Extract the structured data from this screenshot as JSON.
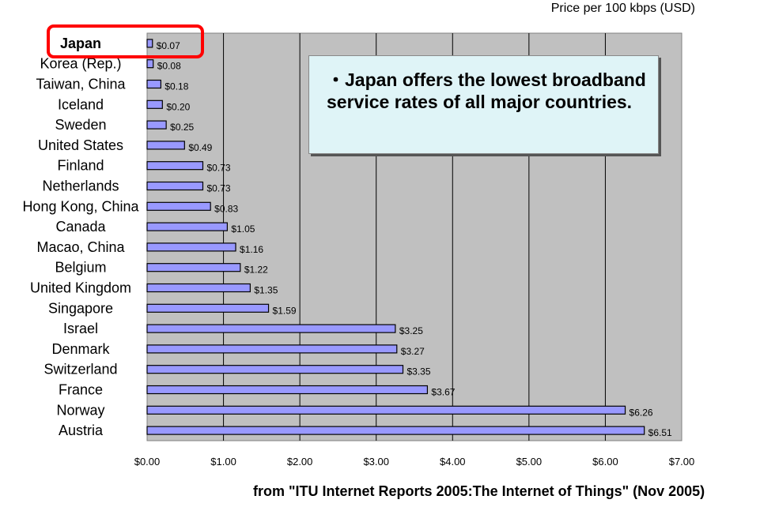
{
  "header": {
    "unit_label": "Price per 100 kbps (USD)"
  },
  "callout": {
    "text": "・Japan offers the lowest broadband service rates of all major countries."
  },
  "footer": {
    "source": "from \"ITU Internet Reports 2005:The Internet of Things\" (Nov 2005)"
  },
  "highlight": {
    "country": "Japan",
    "color": "#ff0000"
  },
  "chart_data": {
    "type": "bar",
    "orientation": "horizontal",
    "categories": [
      "Japan",
      "Korea (Rep.)",
      "Taiwan, China",
      "Iceland",
      "Sweden",
      "United States",
      "Finland",
      "Netherlands",
      "Hong Kong, China",
      "Canada",
      "Macao, China",
      "Belgium",
      "United Kingdom",
      "Singapore",
      "Israel",
      "Denmark",
      "Switzerland",
      "France",
      "Norway",
      "Austria"
    ],
    "values": [
      0.07,
      0.08,
      0.18,
      0.2,
      0.25,
      0.49,
      0.73,
      0.73,
      0.83,
      1.05,
      1.16,
      1.22,
      1.35,
      1.59,
      3.25,
      3.27,
      3.35,
      3.67,
      6.26,
      6.51
    ],
    "value_labels": [
      "$0.07",
      "$0.08",
      "$0.18",
      "$0.20",
      "$0.25",
      "$0.49",
      "$0.73",
      "$0.73",
      "$0.83",
      "$1.05",
      "$1.16",
      "$1.22",
      "$1.35",
      "$1.59",
      "$3.25",
      "$3.27",
      "$3.35",
      "$3.67",
      "$6.26",
      "$6.51"
    ],
    "x_ticks": [
      0,
      1,
      2,
      3,
      4,
      5,
      6,
      7
    ],
    "x_tick_labels": [
      "$0.00",
      "$1.00",
      "$2.00",
      "$3.00",
      "$4.00",
      "$5.00",
      "$6.00",
      "$7.00"
    ],
    "xlim": [
      0,
      7
    ],
    "grid": "vertical",
    "colors": {
      "bar_fill": "#9999ff",
      "bar_stroke": "#000000",
      "plot_background": "#c0c0c0",
      "gridline": "#000000"
    }
  }
}
